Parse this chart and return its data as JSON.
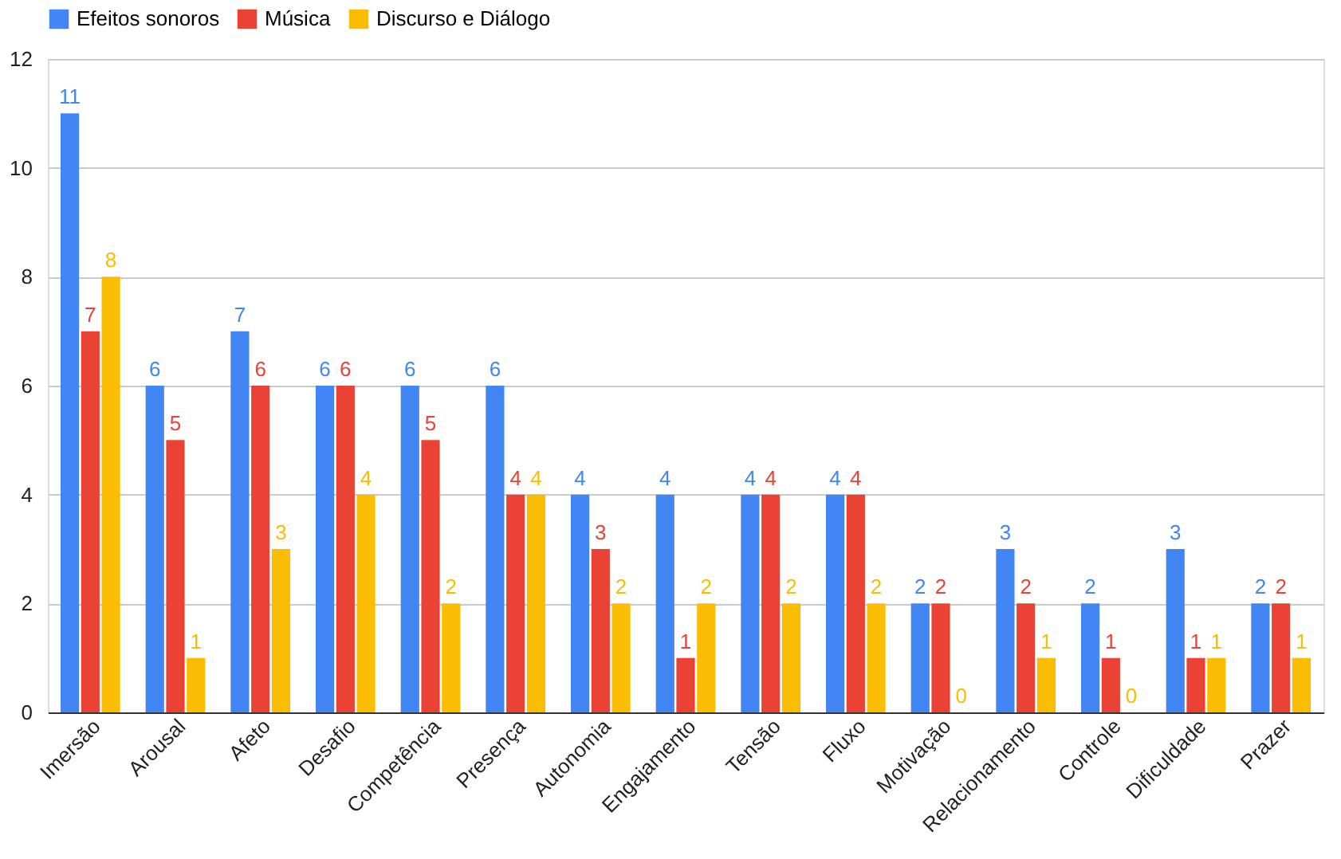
{
  "chart_data": {
    "type": "bar",
    "categories": [
      "Imersão",
      "Arousal",
      "Afeto",
      "Desafio",
      "Competência",
      "Presença",
      "Autonomia",
      "Engajamento",
      "Tensão",
      "Fluxo",
      "Motivação",
      "Relacionamento",
      "Controle",
      "Dificuldade",
      "Prazer"
    ],
    "series": [
      {
        "name": "Efeitos sonoros",
        "color": "#4285f4",
        "values": [
          11,
          6,
          7,
          6,
          6,
          6,
          4,
          4,
          4,
          4,
          2,
          3,
          2,
          3,
          2
        ]
      },
      {
        "name": "Música",
        "color": "#ea4335",
        "values": [
          7,
          5,
          6,
          6,
          5,
          4,
          3,
          1,
          4,
          4,
          2,
          2,
          1,
          1,
          2
        ]
      },
      {
        "name": "Discurso e Diálogo",
        "color": "#fbbc04",
        "values": [
          8,
          1,
          3,
          4,
          2,
          4,
          2,
          2,
          2,
          2,
          0,
          1,
          0,
          1,
          1
        ]
      }
    ],
    "ylim": [
      0,
      12
    ],
    "yticks": [
      0,
      2,
      4,
      6,
      8,
      10,
      12
    ],
    "grid": "y",
    "legend": "top",
    "data_labels": true
  }
}
